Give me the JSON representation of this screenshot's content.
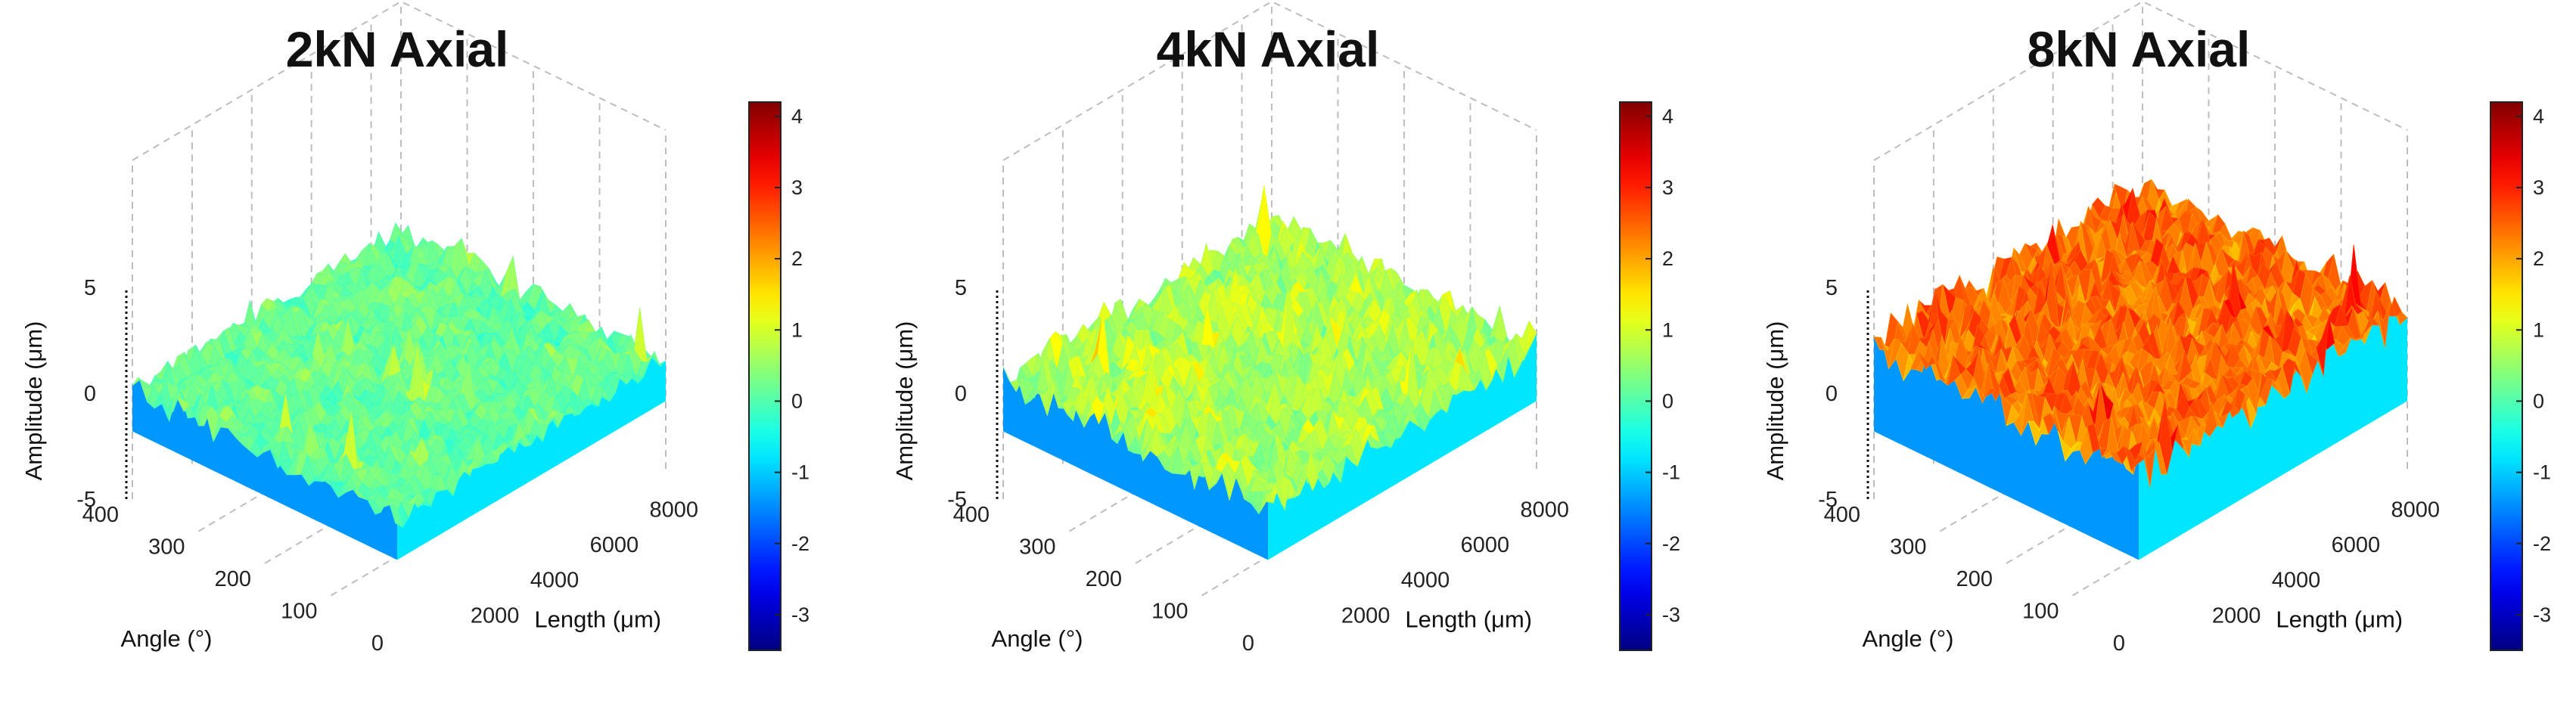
{
  "chart_data": [
    {
      "type": "surface",
      "title": "2kN Axial",
      "xlabel": "Length (μm)",
      "ylabel": "Angle (°)",
      "zlabel": "Amplitude (μm)",
      "x_ticks": [
        "2000",
        "4000",
        "6000",
        "8000"
      ],
      "y_ticks": [
        "0",
        "100",
        "200",
        "300",
        "400"
      ],
      "z_ticks": [
        "5",
        "0",
        "-5"
      ],
      "xlim": [
        0,
        9000
      ],
      "ylim": [
        0,
        400
      ],
      "zlim": [
        -5,
        5
      ],
      "colorbar_ticks": [
        "4",
        "3",
        "2",
        "1",
        "0",
        "-1",
        "-2",
        "-3"
      ],
      "colorbar_range": [
        -3.5,
        4.2
      ],
      "mean_amplitude": 0.2,
      "roughness_amplitude": 0.8,
      "colormap": "jet",
      "grid": true
    },
    {
      "type": "surface",
      "title": "4kN Axial",
      "xlabel": "Length (μm)",
      "ylabel": "Angle (°)",
      "zlabel": "Amplitude (μm)",
      "x_ticks": [
        "2000",
        "4000",
        "6000",
        "8000"
      ],
      "y_ticks": [
        "0",
        "100",
        "200",
        "300",
        "400"
      ],
      "z_ticks": [
        "5",
        "0",
        "-5"
      ],
      "xlim": [
        0,
        9000
      ],
      "ylim": [
        0,
        400
      ],
      "zlim": [
        -5,
        5
      ],
      "colorbar_ticks": [
        "4",
        "3",
        "2",
        "1",
        "0",
        "-1",
        "-2",
        "-3"
      ],
      "colorbar_range": [
        -3.5,
        4.2
      ],
      "mean_amplitude": 0.7,
      "roughness_amplitude": 1.2,
      "colormap": "jet",
      "grid": true
    },
    {
      "type": "surface",
      "title": "8kN Axial",
      "xlabel": "Length (μm)",
      "ylabel": "Angle (°)",
      "zlabel": "Amplitude (μm)",
      "x_ticks": [
        "2000",
        "4000",
        "6000",
        "8000"
      ],
      "y_ticks": [
        "0",
        "100",
        "200",
        "300",
        "400"
      ],
      "z_ticks": [
        "5",
        "0",
        "-5"
      ],
      "xlim": [
        0,
        9000
      ],
      "ylim": [
        0,
        400
      ],
      "zlim": [
        -5,
        5
      ],
      "colorbar_ticks": [
        "4",
        "3",
        "2",
        "1",
        "0",
        "-1",
        "-2",
        "-3"
      ],
      "colorbar_range": [
        -3.5,
        4.2
      ],
      "mean_amplitude": 2.4,
      "roughness_amplitude": 1.3,
      "colormap": "jet",
      "grid": true
    }
  ]
}
